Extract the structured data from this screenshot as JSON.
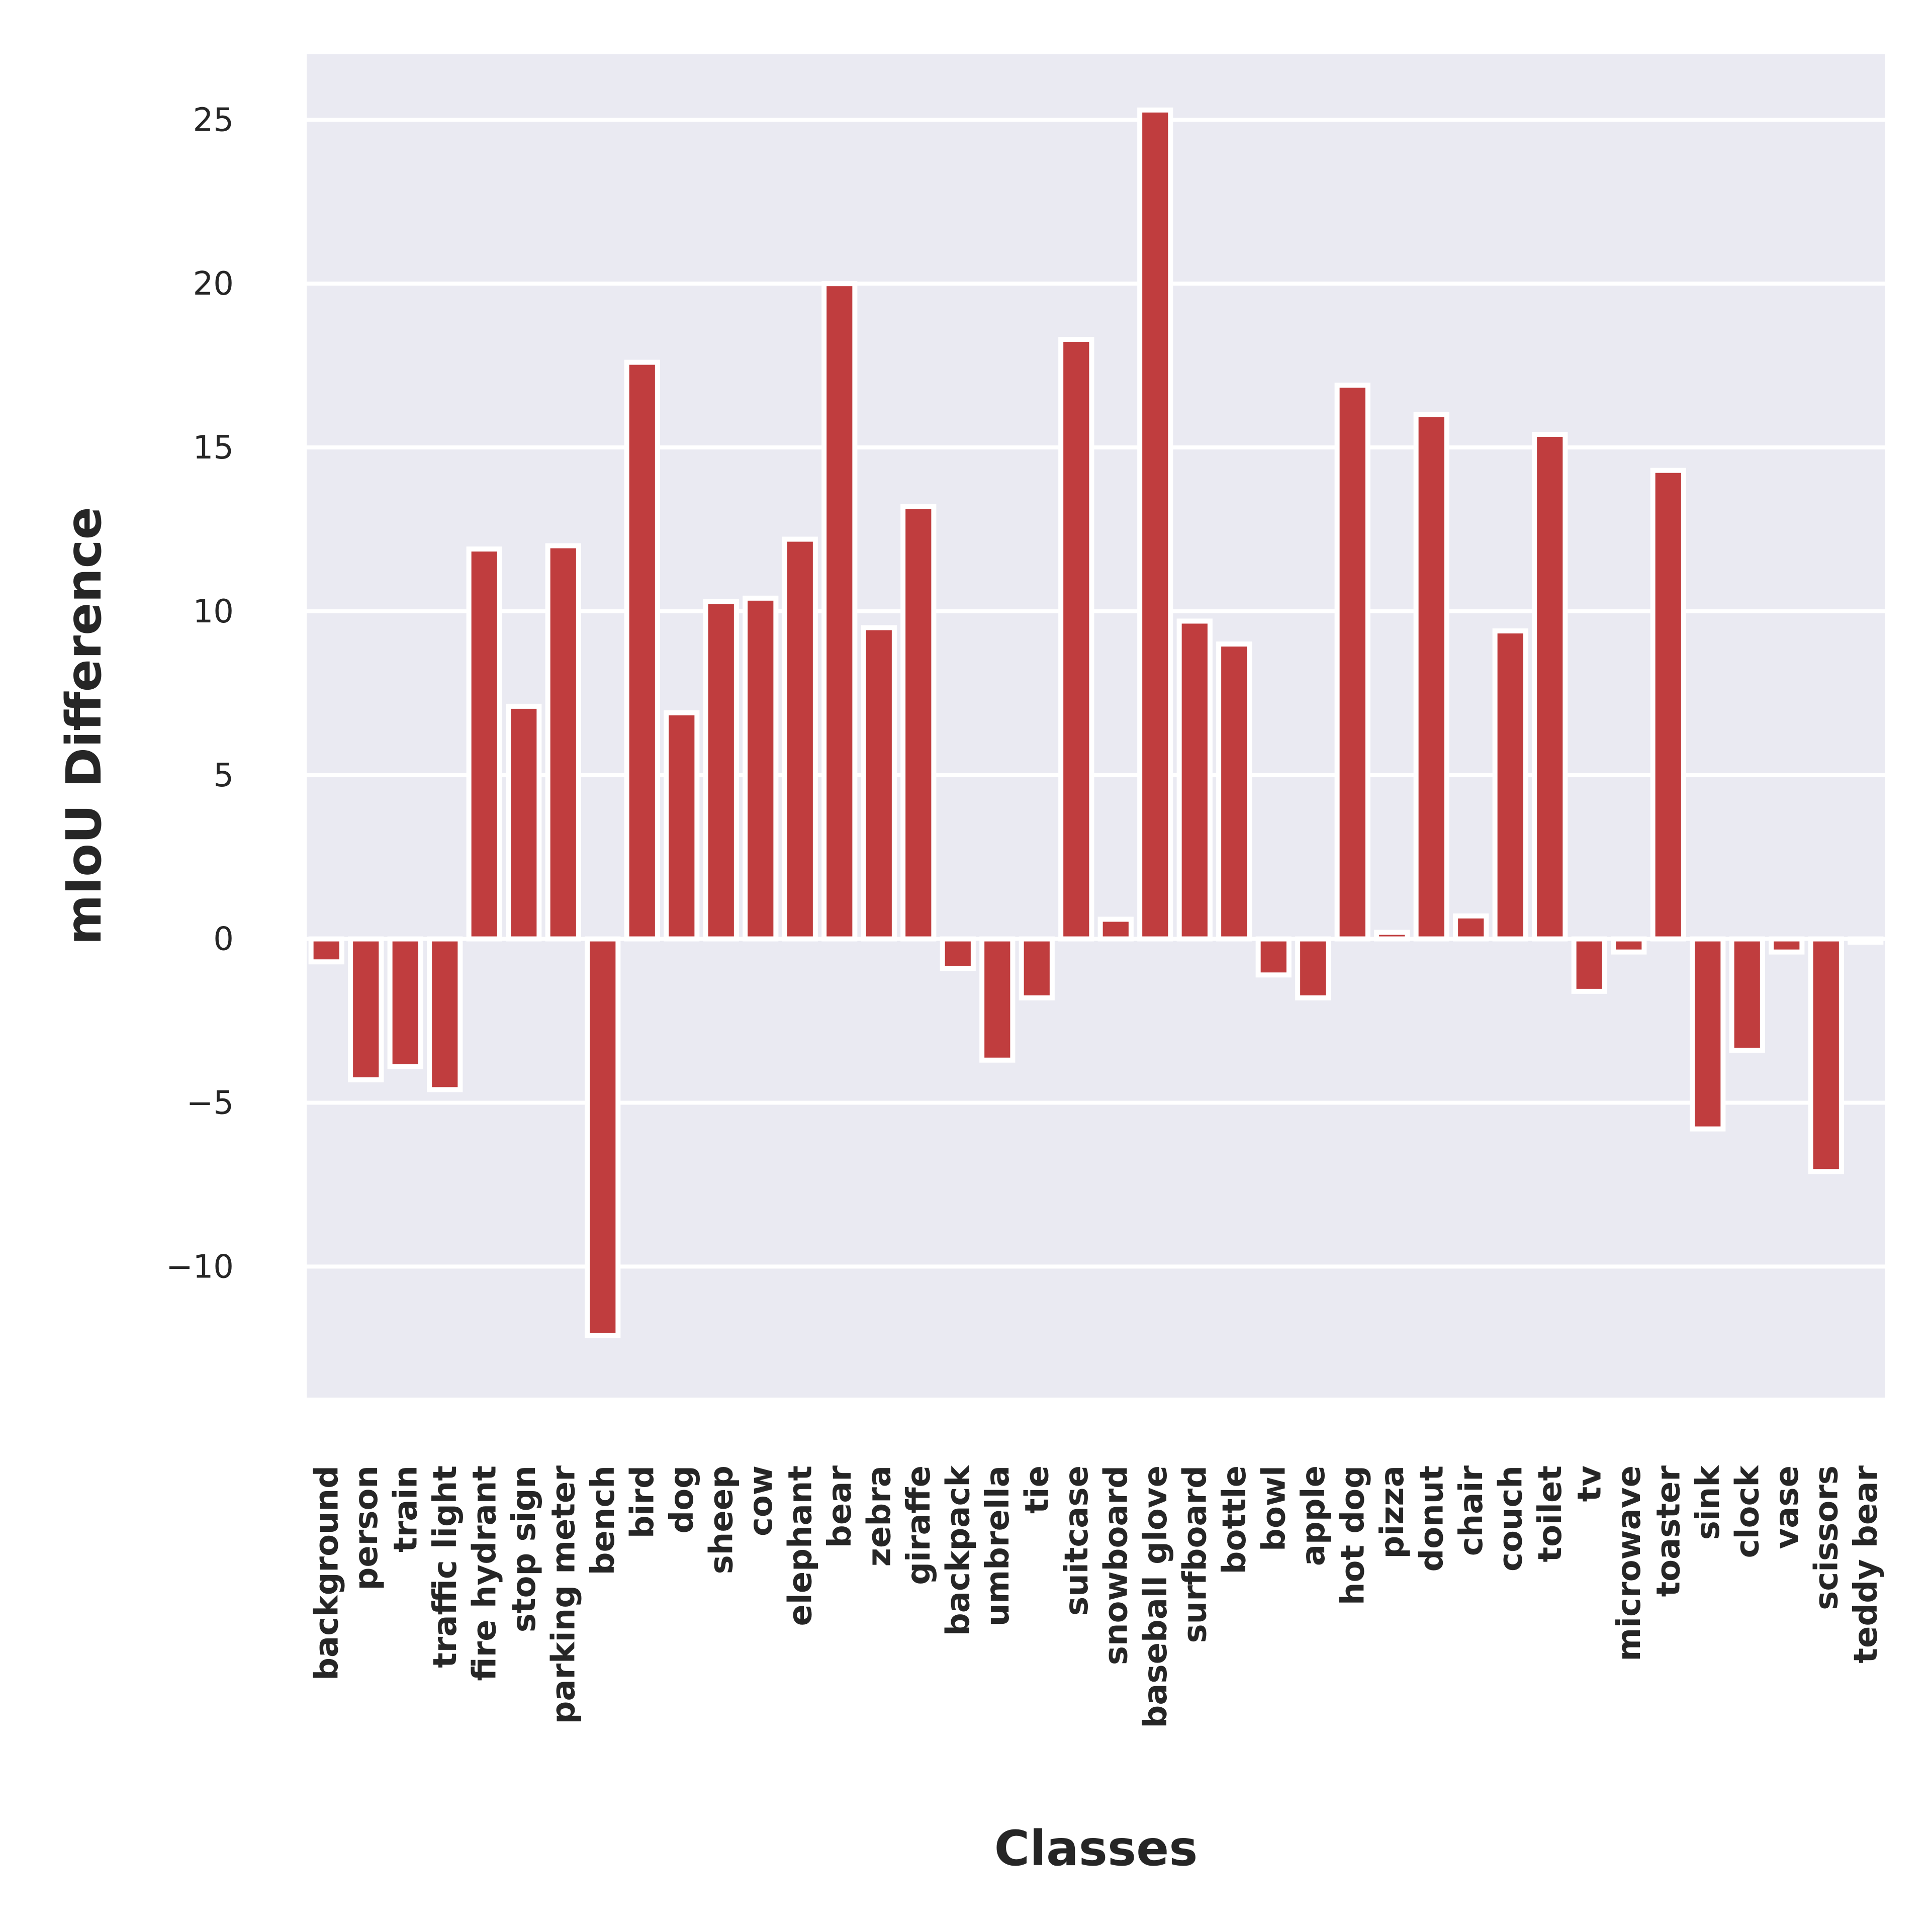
{
  "chart_data": {
    "type": "bar",
    "xlabel": "Classes",
    "ylabel": "mIoU Difference",
    "ylim": [
      -14,
      27
    ],
    "yticks": [
      -10,
      -5,
      0,
      5,
      10,
      15,
      20,
      25
    ],
    "ytick_labels": [
      "−10",
      "−5",
      "0",
      "5",
      "10",
      "15",
      "20",
      "25"
    ],
    "grid": true,
    "colors": {
      "bar": "#c03d3e",
      "plot_bg": "#eaeaf2",
      "grid": "#ffffff",
      "bar_edge": "#ffffff"
    },
    "categories": [
      "background",
      "person",
      "train",
      "traffic light",
      "fire hydrant",
      "stop sign",
      "parking meter",
      "bench",
      "bird",
      "dog",
      "sheep",
      "cow",
      "elephant",
      "bear",
      "zebra",
      "giraffe",
      "backpack",
      "umbrella",
      "tie",
      "suitcase",
      "snowboard",
      "baseball glove",
      "surfboard",
      "bottle",
      "bowl",
      "apple",
      "hot dog",
      "pizza",
      "donut",
      "chair",
      "couch",
      "toilet",
      "tv",
      "microwave",
      "toaster",
      "sink",
      "clock",
      "vase",
      "scissors",
      "teddy bear"
    ],
    "values": [
      -0.7,
      -4.3,
      -3.9,
      -4.6,
      11.9,
      7.1,
      12.0,
      -12.1,
      17.6,
      6.9,
      10.3,
      10.4,
      12.2,
      20.0,
      9.5,
      13.2,
      -0.9,
      -3.7,
      -1.8,
      18.3,
      0.6,
      25.3,
      9.7,
      9.0,
      -1.1,
      -1.8,
      16.9,
      0.2,
      16.0,
      0.7,
      9.4,
      15.4,
      -1.6,
      -0.4,
      14.3,
      -5.8,
      -3.4,
      -0.4,
      -7.1,
      -0.1
    ]
  }
}
